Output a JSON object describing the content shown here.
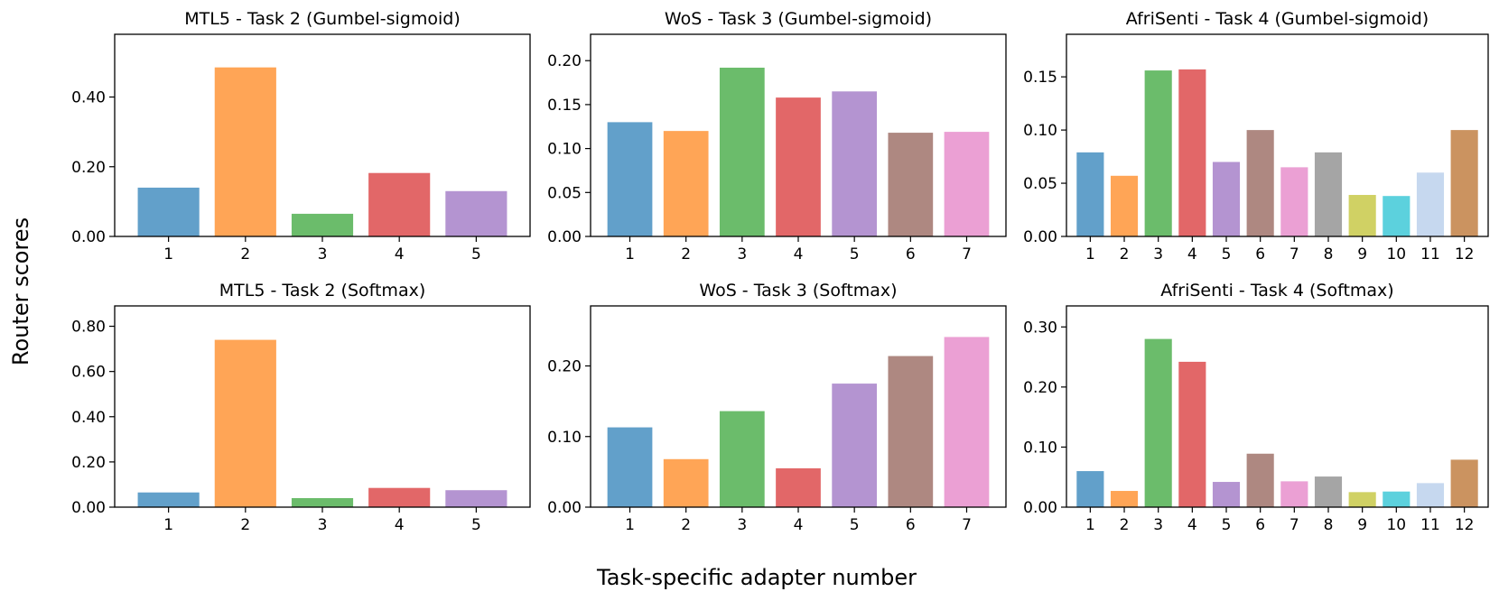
{
  "figure": {
    "ylabel": "Router scores",
    "xlabel": "Task-specific adapter number"
  },
  "palette": [
    "#1f77b4",
    "#ff7f0e",
    "#2ca02c",
    "#d62728",
    "#9467bd",
    "#8c564b",
    "#e377c2",
    "#7f7f7f",
    "#bcbd22",
    "#17becf",
    "#aec7e8",
    "#b5651d"
  ],
  "chart_data": [
    {
      "type": "bar",
      "title": "MTL5 - Task 2 (Gumbel-sigmoid)",
      "categories": [
        "1",
        "2",
        "3",
        "4",
        "5"
      ],
      "values": [
        0.14,
        0.485,
        0.065,
        0.182,
        0.13
      ],
      "ylim": [
        0,
        0.58
      ],
      "yticks": [
        0,
        0.2,
        0.4
      ],
      "ytick_labels": [
        "0.00",
        "0.20",
        "0.40"
      ]
    },
    {
      "type": "bar",
      "title": "WoS - Task 3 (Gumbel-sigmoid)",
      "categories": [
        "1",
        "2",
        "3",
        "4",
        "5",
        "6",
        "7"
      ],
      "values": [
        0.13,
        0.12,
        0.192,
        0.158,
        0.165,
        0.118,
        0.119
      ],
      "ylim": [
        0,
        0.23
      ],
      "yticks": [
        0,
        0.05,
        0.1,
        0.15,
        0.2
      ],
      "ytick_labels": [
        "0.00",
        "0.05",
        "0.10",
        "0.15",
        "0.20"
      ]
    },
    {
      "type": "bar",
      "title": "AfriSenti - Task 4 (Gumbel-sigmoid)",
      "categories": [
        "1",
        "2",
        "3",
        "4",
        "5",
        "6",
        "7",
        "8",
        "9",
        "10",
        "11",
        "12"
      ],
      "values": [
        0.079,
        0.057,
        0.156,
        0.157,
        0.07,
        0.1,
        0.065,
        0.079,
        0.039,
        0.038,
        0.06,
        0.1
      ],
      "ylim": [
        0,
        0.19
      ],
      "yticks": [
        0,
        0.05,
        0.1,
        0.15
      ],
      "ytick_labels": [
        "0.00",
        "0.05",
        "0.10",
        "0.15"
      ]
    },
    {
      "type": "bar",
      "title": "MTL5 - Task 2 (Softmax)",
      "categories": [
        "1",
        "2",
        "3",
        "4",
        "5"
      ],
      "values": [
        0.065,
        0.74,
        0.04,
        0.085,
        0.075
      ],
      "ylim": [
        0,
        0.89
      ],
      "yticks": [
        0,
        0.2,
        0.4,
        0.6,
        0.8
      ],
      "ytick_labels": [
        "0.00",
        "0.20",
        "0.40",
        "0.60",
        "0.80"
      ]
    },
    {
      "type": "bar",
      "title": "WoS - Task 3 (Softmax)",
      "categories": [
        "1",
        "2",
        "3",
        "4",
        "5",
        "6",
        "7"
      ],
      "values": [
        0.113,
        0.068,
        0.136,
        0.055,
        0.175,
        0.214,
        0.241
      ],
      "ylim": [
        0,
        0.285
      ],
      "yticks": [
        0,
        0.1,
        0.2
      ],
      "ytick_labels": [
        "0.00",
        "0.10",
        "0.20"
      ]
    },
    {
      "type": "bar",
      "title": "AfriSenti - Task 4 (Softmax)",
      "categories": [
        "1",
        "2",
        "3",
        "4",
        "5",
        "6",
        "7",
        "8",
        "9",
        "10",
        "11",
        "12"
      ],
      "values": [
        0.06,
        0.027,
        0.28,
        0.242,
        0.042,
        0.089,
        0.043,
        0.051,
        0.025,
        0.026,
        0.04,
        0.079
      ],
      "ylim": [
        0,
        0.335
      ],
      "yticks": [
        0,
        0.1,
        0.2,
        0.3
      ],
      "ytick_labels": [
        "0.00",
        "0.10",
        "0.20",
        "0.30"
      ]
    }
  ]
}
